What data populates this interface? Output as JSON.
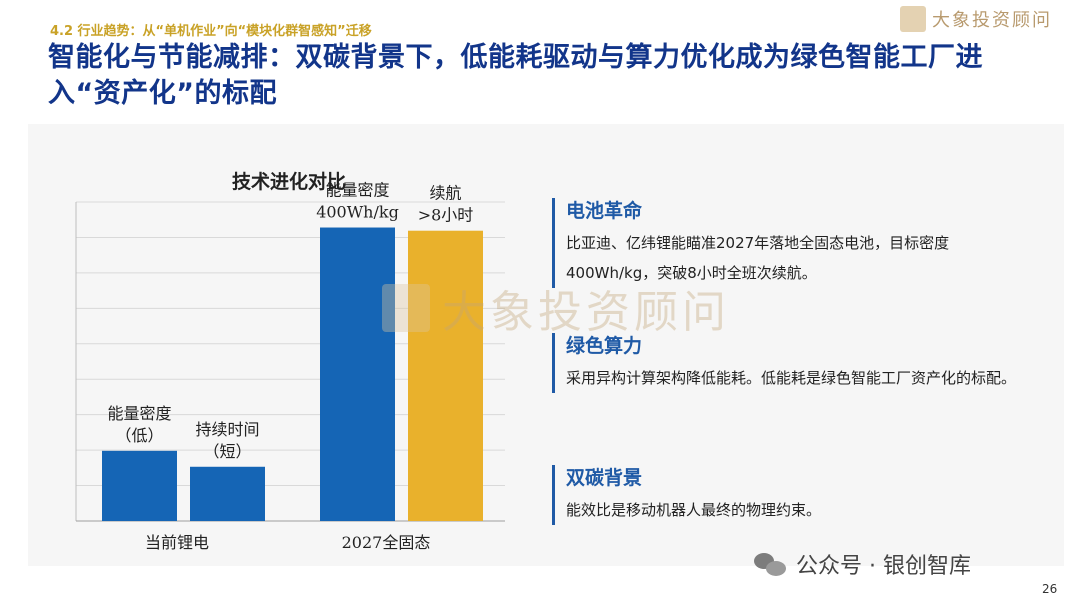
{
  "header": {
    "section": "4.2 行业趋势：从“单机作业”向“模块化群智感知”迁移",
    "title": "智能化与节能减排：双碳背景下，低能耗驱动与算力优化成为绿色智能工厂进入“资产化”的标配",
    "brand": "大象投资顾问"
  },
  "watermark": "大象投资顾问",
  "chart_data": {
    "type": "bar",
    "title": "技术进化对比",
    "ylim": [
      0,
      100
    ],
    "grid": true,
    "groups": [
      "当前锂电",
      "2027全固态"
    ],
    "bars": [
      {
        "group": "当前锂电",
        "label": "能量密度\n（低）",
        "value": 22,
        "color": "#1565b5"
      },
      {
        "group": "当前锂电",
        "label": "持续时间\n（短）",
        "value": 17,
        "color": "#1565b5"
      },
      {
        "group": "2027全固态",
        "label": "能量密度\n400Wh/kg",
        "value": 92,
        "color": "#1565b5"
      },
      {
        "group": "2027全固态",
        "label": "续航\n>8小时",
        "value": 91,
        "color": "#e9b12c"
      }
    ]
  },
  "blocks": [
    {
      "title": "电池革命",
      "text": "比亚迪、亿纬锂能瞄准2027年落地全固态电池，目标密度400Wh/kg，突破8小时全班次续航。"
    },
    {
      "title": "绿色算力",
      "text": "采用异构计算架构降低能耗。低能耗是绿色智能工厂资产化的标配。"
    },
    {
      "title": "双碳背景",
      "text": "能效比是移动机器人最终的物理约束。"
    }
  ],
  "footer": {
    "wechat": "公众号 · 银创智库",
    "page": "26"
  }
}
